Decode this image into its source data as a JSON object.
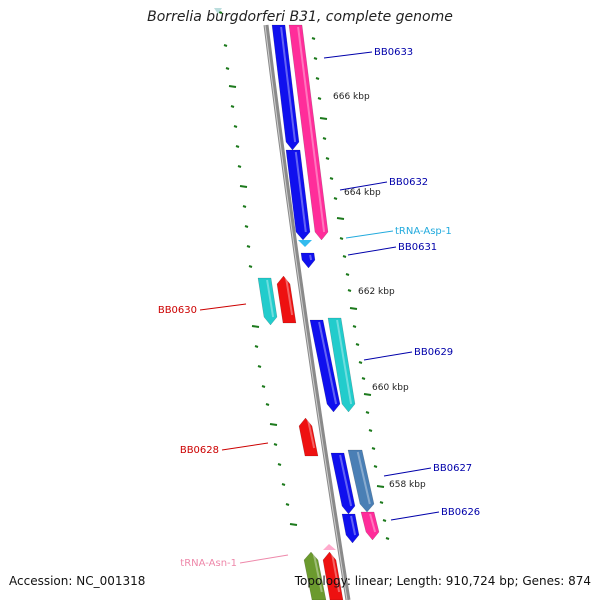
{
  "title": "Borrelia burgdorferi B31, complete genome",
  "footer": {
    "accession": "Accession: NC_001318",
    "topology": "Topology: linear; Length: 910,724 bp; Genes: 874"
  },
  "colors": {
    "backbone": "#8a8a8a",
    "tick": "#1d7a1d",
    "cds_blue": "#1010ee",
    "cds_pink": "#ff2d9a",
    "cds_cyan": "#22cccc",
    "cds_red": "#ee1111",
    "cds_steel": "#4a7fb5",
    "cds_olive": "#6b9a2e",
    "trna_light": "#33bbee",
    "trna_pink": "#ffaacc",
    "label_blue": "#0000aa",
    "label_red": "#cc0000",
    "label_cyan": "#22aadd",
    "label_pink": "#ee88aa"
  },
  "kbp_labels": [
    "666 kbp",
    "664 kbp",
    "662 kbp",
    "660 kbp",
    "658 kbp"
  ],
  "gene_labels": [
    {
      "text": "BB0633",
      "color": "#0000aa"
    },
    {
      "text": "BB0632",
      "color": "#0000aa"
    },
    {
      "text": "tRNA-Asp-1",
      "color": "#22aadd"
    },
    {
      "text": "BB0631",
      "color": "#0000aa"
    },
    {
      "text": "BB0630",
      "color": "#cc0000"
    },
    {
      "text": "BB0629",
      "color": "#0000aa"
    },
    {
      "text": "BB0628",
      "color": "#cc0000"
    },
    {
      "text": "BB0627",
      "color": "#0000aa"
    },
    {
      "text": "BB0626",
      "color": "#0000aa"
    },
    {
      "text": "tRNA-Asn-1",
      "color": "#ee88aa"
    }
  ]
}
